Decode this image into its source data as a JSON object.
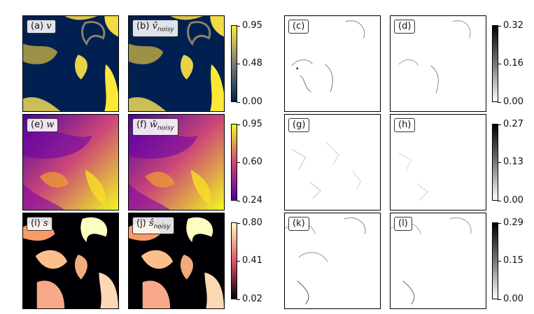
{
  "rows": [
    {
      "panels": [
        {
          "letter": "(a)",
          "sym": "v",
          "hat": false,
          "sub": ""
        },
        {
          "letter": "(b)",
          "sym": "v",
          "hat": true,
          "sub": "noisy"
        },
        {
          "letter": "(c)",
          "sym": "",
          "hat": false,
          "sub": ""
        },
        {
          "letter": "(d)",
          "sym": "",
          "hat": false,
          "sub": ""
        }
      ],
      "colorbar_main": {
        "cmap": "cividis",
        "ticks": [
          "0.95",
          "0.48",
          "0.00"
        ]
      },
      "colorbar_err": {
        "cmap": "greys",
        "ticks": [
          "0.32",
          "0.16",
          "0.00"
        ]
      }
    },
    {
      "panels": [
        {
          "letter": "(e)",
          "sym": "w",
          "hat": false,
          "sub": ""
        },
        {
          "letter": "(f)",
          "sym": "w",
          "hat": true,
          "sub": "noisy"
        },
        {
          "letter": "(g)",
          "sym": "",
          "hat": false,
          "sub": ""
        },
        {
          "letter": "(h)",
          "sym": "",
          "hat": false,
          "sub": ""
        }
      ],
      "colorbar_main": {
        "cmap": "plasma",
        "ticks": [
          "0.95",
          "0.60",
          "0.24"
        ]
      },
      "colorbar_err": {
        "cmap": "greys",
        "ticks": [
          "0.27",
          "0.13",
          "0.00"
        ]
      }
    },
    {
      "panels": [
        {
          "letter": "(i)",
          "sym": "s",
          "hat": false,
          "sub": ""
        },
        {
          "letter": "(j)",
          "sym": "s",
          "hat": true,
          "sub": "noisy"
        },
        {
          "letter": "(k)",
          "sym": "",
          "hat": false,
          "sub": ""
        },
        {
          "letter": "(l)",
          "sym": "",
          "hat": false,
          "sub": ""
        }
      ],
      "colorbar_main": {
        "cmap": "magma",
        "ticks": [
          "0.80",
          "0.41",
          "0.02"
        ]
      },
      "colorbar_err": {
        "cmap": "greys",
        "ticks": [
          "0.29",
          "0.15",
          "0.00"
        ]
      }
    }
  ],
  "colors": {
    "cividis_dark": "#002051",
    "cividis_light": "#fde838",
    "cividis_mid": "#7c7b78",
    "plasma_dark": "#4c02a1",
    "plasma_mid": "#cc4778",
    "plasma_light": "#f0f921",
    "magma_dark": "#000004",
    "magma_mid": "#e3526b",
    "magma_light": "#fcfdbf"
  }
}
